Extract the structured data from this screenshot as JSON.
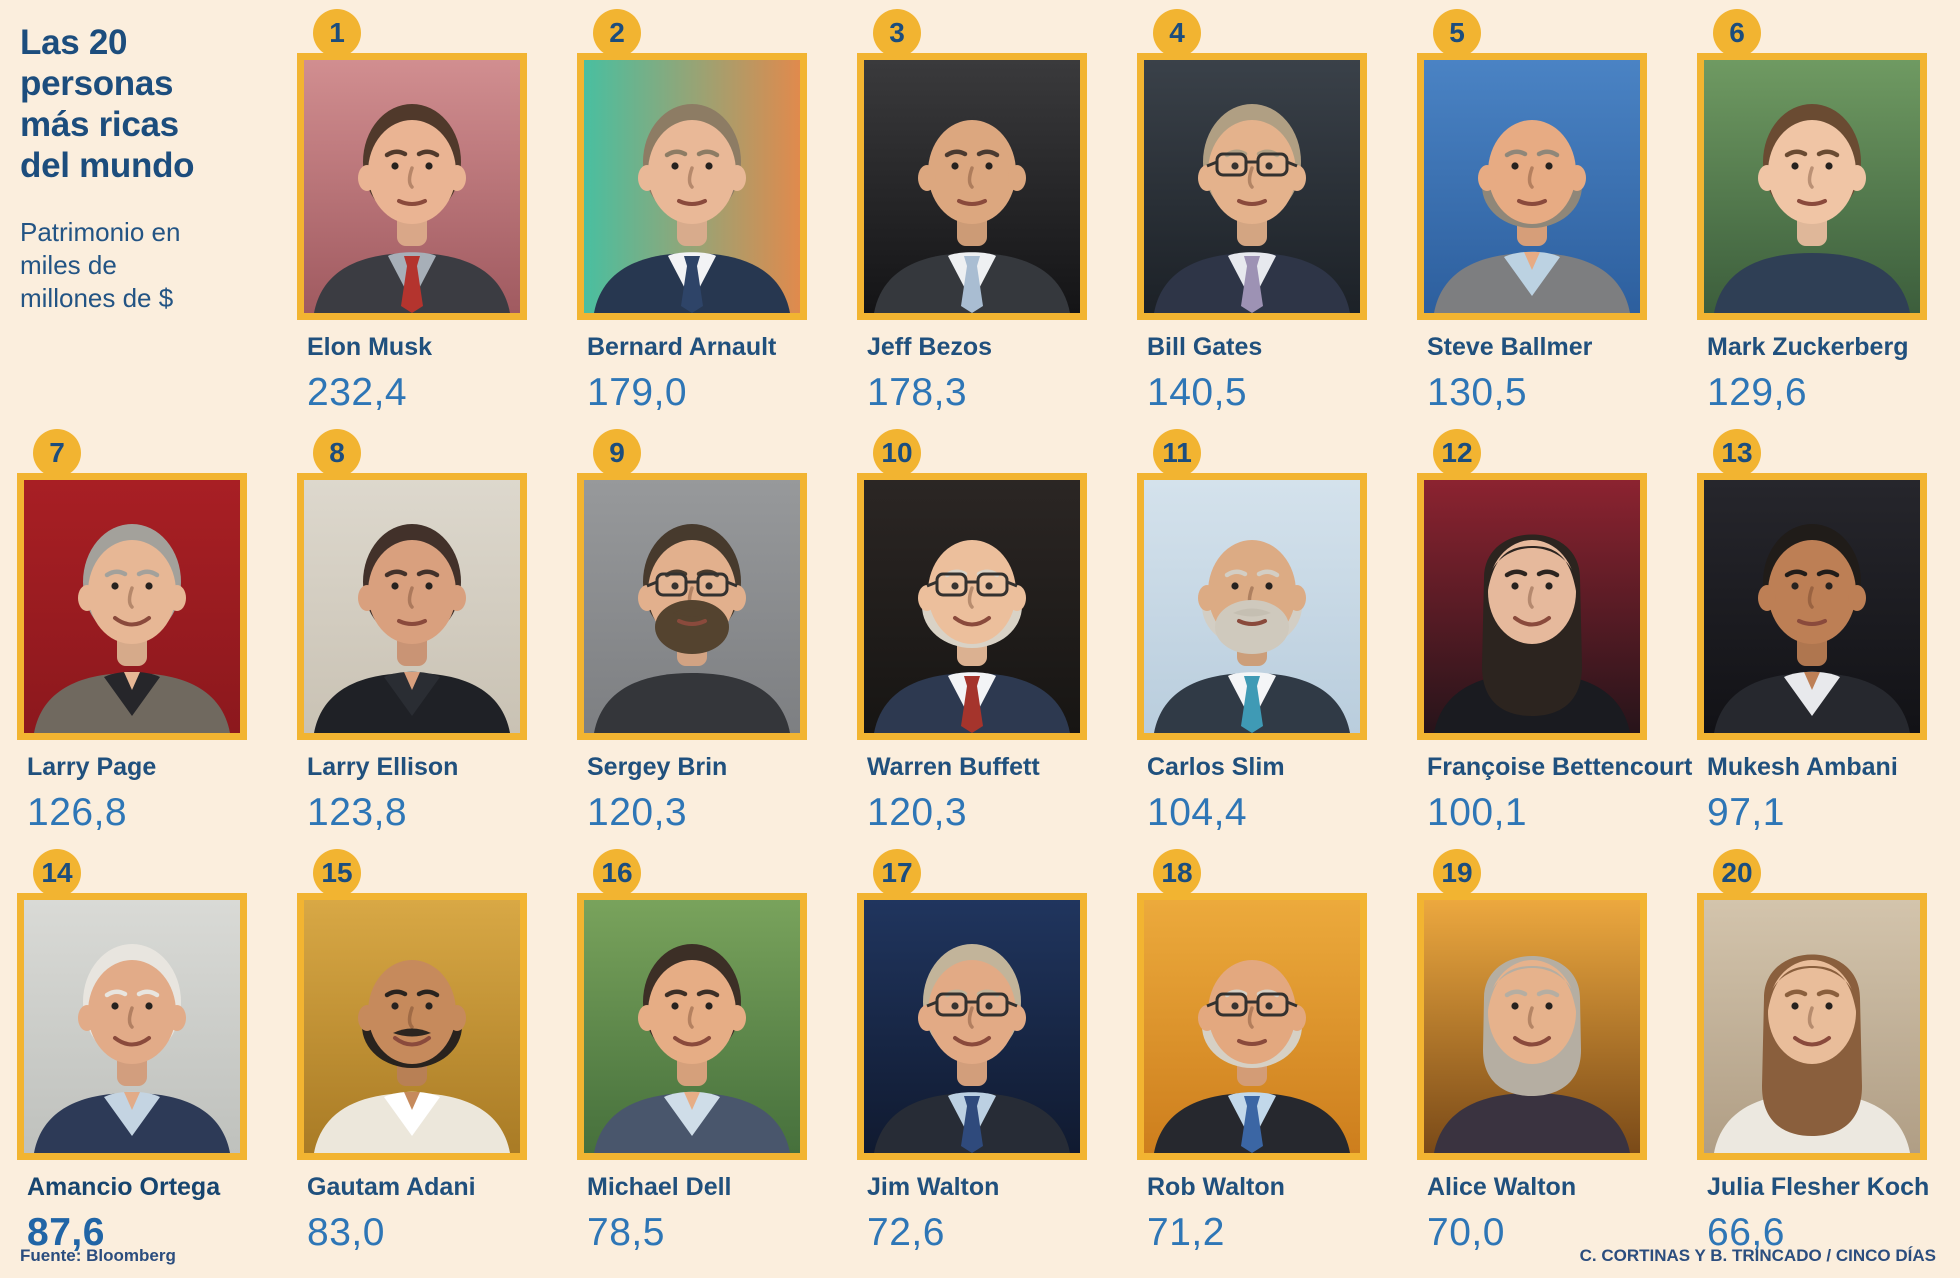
{
  "header": {
    "title": "Las 20 personas más ricas del mundo",
    "subtitle": "Patrimonio en miles de millones de $"
  },
  "footer": {
    "source": "Fuente: Bloomberg",
    "credit": "C. CORTINAS Y B. TRINCADO / CINCO DÍAS"
  },
  "colors": {
    "background": "#fbeedd",
    "accent_gold": "#f2b431",
    "navy": "#1c4d7d",
    "value_blue": "#2e76b6"
  },
  "people": [
    {
      "rank": 1,
      "row": 1,
      "name": "Elon Musk",
      "value_display": "232,4",
      "highlighted": false,
      "avatar": {
        "bg": [
          "#d18e90",
          "#a05a60"
        ],
        "bgDir": "v",
        "skin": "#eab493",
        "hair": "#50392b",
        "hairStyle": "short",
        "beard": null,
        "mustache": null,
        "glasses": false,
        "jacket": "#3b3c42",
        "shirt": "#a7afb8",
        "tie": "#b4342e",
        "neck": "suit",
        "mouth": "neutral"
      }
    },
    {
      "rank": 2,
      "row": 1,
      "name": "Bernard Arnault",
      "value_display": "179,0",
      "highlighted": false,
      "avatar": {
        "bg": [
          "#49bfa0",
          "#e08a4d"
        ],
        "bgDir": "h",
        "skin": "#e9b897",
        "hair": "#8d7c64",
        "hairStyle": "short",
        "beard": null,
        "mustache": null,
        "glasses": false,
        "jacket": "#273750",
        "shirt": "#f2f3f5",
        "tie": "#2e4468",
        "neck": "suit",
        "mouth": "neutral"
      }
    },
    {
      "rank": 3,
      "row": 1,
      "name": "Jeff Bezos",
      "value_display": "178,3",
      "highlighted": false,
      "avatar": {
        "bg": [
          "#3a3a3c",
          "#141416"
        ],
        "bgDir": "v",
        "skin": "#dca77f",
        "hair": "#5a4634",
        "hairStyle": "bald",
        "beard": null,
        "mustache": null,
        "glasses": false,
        "jacket": "#35383d",
        "shirt": "#eef0f2",
        "tie": "#a9bdd2",
        "neck": "suit",
        "mouth": "neutral"
      }
    },
    {
      "rank": 4,
      "row": 1,
      "name": "Bill Gates",
      "value_display": "140,5",
      "highlighted": false,
      "avatar": {
        "bg": [
          "#3a4149",
          "#1c2127"
        ],
        "bgDir": "v",
        "skin": "#e4b28c",
        "hair": "#b09f83",
        "hairStyle": "short",
        "beard": null,
        "mustache": null,
        "glasses": true,
        "jacket": "#2e3547",
        "shirt": "#e7e9ee",
        "tie": "#9d92b4",
        "neck": "suit",
        "mouth": "neutral"
      }
    },
    {
      "rank": 5,
      "row": 1,
      "name": "Steve Ballmer",
      "value_display": "130,5",
      "highlighted": false,
      "avatar": {
        "bg": [
          "#4a83c4",
          "#2d5f9e"
        ],
        "bgDir": "v",
        "skin": "#e7ab83",
        "hair": "#8f8779",
        "hairStyle": "side",
        "beard": null,
        "mustache": null,
        "glasses": false,
        "jacket": "#7d7e80",
        "shirt": "#bcd2e2",
        "tie": null,
        "neck": "open",
        "mouth": "neutral"
      }
    },
    {
      "rank": 6,
      "row": 1,
      "name": "Mark Zuckerberg",
      "value_display": "129,6",
      "highlighted": false,
      "avatar": {
        "bg": [
          "#6f9a62",
          "#3c5e3c"
        ],
        "bgDir": "v",
        "skin": "#f0c5a5",
        "hair": "#6a4b32",
        "hairStyle": "short",
        "beard": null,
        "mustache": null,
        "glasses": false,
        "jacket": "#2f3f55",
        "shirt": "#2f3f55",
        "tie": null,
        "neck": "crew",
        "mouth": "neutral"
      }
    },
    {
      "rank": 7,
      "row": 2,
      "name": "Larry Page",
      "value_display": "126,8",
      "highlighted": false,
      "avatar": {
        "bg": [
          "#a81f24",
          "#8c181d"
        ],
        "bgDir": "v",
        "skin": "#e7b795",
        "hair": "#a3a19b",
        "hairStyle": "short",
        "beard": null,
        "mustache": null,
        "glasses": false,
        "jacket": "#70695f",
        "shirt": "#26262a",
        "tie": null,
        "neck": "open",
        "mouth": "smile"
      }
    },
    {
      "rank": 8,
      "row": 2,
      "name": "Larry Ellison",
      "value_display": "123,8",
      "highlighted": false,
      "avatar": {
        "bg": [
          "#ddd8cd",
          "#c9c2b4"
        ],
        "bgDir": "v",
        "skin": "#d9a07e",
        "hair": "#42312a",
        "hairStyle": "short",
        "beard": null,
        "mustache": null,
        "glasses": false,
        "jacket": "#1f2126",
        "shirt": "#2a2d33",
        "tie": null,
        "neck": "open",
        "mouth": "neutral"
      }
    },
    {
      "rank": 9,
      "row": 2,
      "name": "Sergey Brin",
      "value_display": "120,3",
      "highlighted": false,
      "avatar": {
        "bg": [
          "#97999b",
          "#7d7f82"
        ],
        "bgDir": "v",
        "skin": "#e2b08d",
        "hair": "#473a2d",
        "hairStyle": "short",
        "beard": "#54432f",
        "mustache": "#54432f",
        "glasses": true,
        "jacket": "#34363a",
        "shirt": "#34363a",
        "tie": null,
        "neck": "crew",
        "mouth": "neutral"
      }
    },
    {
      "rank": 10,
      "row": 2,
      "name": "Warren Buffett",
      "value_display": "120,3",
      "highlighted": false,
      "avatar": {
        "bg": [
          "#2b2624",
          "#171513"
        ],
        "bgDir": "v",
        "skin": "#ecbf9c",
        "hair": "#d9d2c6",
        "hairStyle": "side",
        "beard": null,
        "mustache": null,
        "glasses": true,
        "jacket": "#2d3950",
        "shirt": "#f3f4f6",
        "tie": "#a5342c",
        "neck": "suit",
        "mouth": "smile"
      }
    },
    {
      "rank": 11,
      "row": 2,
      "name": "Carlos Slim",
      "value_display": "104,4",
      "highlighted": false,
      "avatar": {
        "bg": [
          "#d4e2ec",
          "#b9cddd"
        ],
        "bgDir": "v",
        "skin": "#dcab84",
        "hair": "#d3cec4",
        "hairStyle": "side",
        "beard": "#cfc9bd",
        "mustache": "#c5bfb2",
        "glasses": false,
        "jacket": "#303a46",
        "shirt": "#f4f5f7",
        "tie": "#3f9ab5",
        "neck": "suit",
        "mouth": "neutral"
      }
    },
    {
      "rank": 12,
      "row": 2,
      "name": "Françoise Bettencourt",
      "value_display": "100,1",
      "highlighted": false,
      "avatar": {
        "bg": [
          "#8c2330",
          "#27141a"
        ],
        "bgDir": "v",
        "skin": "#e6b99c",
        "hair": "#2c241f",
        "hairStyle": "long",
        "beard": null,
        "mustache": null,
        "glasses": false,
        "jacket": "#1a1b20",
        "shirt": "#1a1b20",
        "tie": null,
        "neck": "crew",
        "mouth": "smile"
      }
    },
    {
      "rank": 13,
      "row": 2,
      "name": "Mukesh Ambani",
      "value_display": "97,1",
      "highlighted": false,
      "avatar": {
        "bg": [
          "#26262c",
          "#121216"
        ],
        "bgDir": "v",
        "skin": "#bd7f55",
        "hair": "#201c19",
        "hairStyle": "short",
        "beard": null,
        "mustache": null,
        "glasses": false,
        "jacket": "#26282e",
        "shirt": "#e8e9ec",
        "tie": null,
        "neck": "open",
        "mouth": "neutral"
      }
    },
    {
      "rank": 14,
      "row": 3,
      "name": "Amancio Ortega",
      "value_display": "87,6",
      "highlighted": true,
      "avatar": {
        "bg": [
          "#d9dad6",
          "#bfc1bd"
        ],
        "bgDir": "v",
        "skin": "#e2ab88",
        "hair": "#e8e5df",
        "hairStyle": "short",
        "beard": null,
        "mustache": null,
        "glasses": false,
        "jacket": "#2d3a57",
        "shirt": "#c4d4e2",
        "tie": null,
        "neck": "open",
        "mouth": "smile"
      }
    },
    {
      "rank": 15,
      "row": 3,
      "name": "Gautam Adani",
      "value_display": "83,0",
      "highlighted": false,
      "avatar": {
        "bg": [
          "#d8a845",
          "#a97b25"
        ],
        "bgDir": "v",
        "skin": "#c68a5c",
        "hair": "#29231e",
        "hairStyle": "side",
        "beard": null,
        "mustache": "#2b2520",
        "glasses": false,
        "jacket": "#ece7db",
        "shirt": "#ffffff",
        "tie": null,
        "neck": "open",
        "mouth": "smile"
      }
    },
    {
      "rank": 16,
      "row": 3,
      "name": "Michael Dell",
      "value_display": "78,5",
      "highlighted": false,
      "avatar": {
        "bg": [
          "#79a35c",
          "#46703c"
        ],
        "bgDir": "v",
        "skin": "#e6ad85",
        "hair": "#3c2f26",
        "hairStyle": "short",
        "beard": null,
        "mustache": null,
        "glasses": false,
        "jacket": "#49566c",
        "shirt": "#cfdde8",
        "tie": null,
        "neck": "open",
        "mouth": "smile"
      }
    },
    {
      "rank": 17,
      "row": 3,
      "name": "Jim Walton",
      "value_display": "72,6",
      "highlighted": false,
      "avatar": {
        "bg": [
          "#20355e",
          "#101a30"
        ],
        "bgDir": "v",
        "skin": "#e2aa85",
        "hair": "#c2b49a",
        "hairStyle": "short",
        "beard": null,
        "mustache": null,
        "glasses": true,
        "jacket": "#272c36",
        "shirt": "#bcd0e2",
        "tie": "#2f4a7c",
        "neck": "suit",
        "mouth": "smile"
      }
    },
    {
      "rank": 18,
      "row": 3,
      "name": "Rob Walton",
      "value_display": "71,2",
      "highlighted": false,
      "avatar": {
        "bg": [
          "#ecaa3c",
          "#cd7e1d"
        ],
        "bgDir": "v",
        "skin": "#e3a87f",
        "hair": "#d6d0c4",
        "hairStyle": "side",
        "beard": null,
        "mustache": null,
        "glasses": true,
        "jacket": "#26282e",
        "shirt": "#c2d8ea",
        "tie": "#3b66a4",
        "neck": "suit",
        "mouth": "neutral"
      }
    },
    {
      "rank": 19,
      "row": 3,
      "name": "Alice Walton",
      "value_display": "70,0",
      "highlighted": false,
      "avatar": {
        "bg": [
          "#eca83f",
          "#7a4a18"
        ],
        "bgDir": "v",
        "skin": "#e6b28c",
        "hair": "#b5aea2",
        "hairStyle": "bob",
        "beard": null,
        "mustache": null,
        "glasses": false,
        "jacket": "#3a3340",
        "shirt": "#3a3340",
        "tie": null,
        "neck": "crew",
        "mouth": "smile"
      }
    },
    {
      "rank": 20,
      "row": 3,
      "name": "Julia Flesher Koch",
      "value_display": "66,6",
      "highlighted": false,
      "avatar": {
        "bg": [
          "#d3c4ac",
          "#b09e85"
        ],
        "bgDir": "v",
        "skin": "#e9bd9a",
        "hair": "#8a5f3d",
        "hairStyle": "long",
        "beard": null,
        "mustache": null,
        "glasses": false,
        "jacket": "#ece8e0",
        "shirt": "#ece8e0",
        "tie": null,
        "neck": "crew",
        "mouth": "smile"
      }
    }
  ],
  "chart_data": {
    "type": "table",
    "title": "Las 20 personas más ricas del mundo",
    "unit": "miles de millones de $",
    "categories": [
      "Elon Musk",
      "Bernard Arnault",
      "Jeff Bezos",
      "Bill Gates",
      "Steve Ballmer",
      "Mark Zuckerberg",
      "Larry Page",
      "Larry Ellison",
      "Sergey Brin",
      "Warren Buffett",
      "Carlos Slim",
      "Françoise Bettencourt",
      "Mukesh Ambani",
      "Amancio Ortega",
      "Gautam Adani",
      "Michael Dell",
      "Jim Walton",
      "Rob Walton",
      "Alice Walton",
      "Julia Flesher Koch"
    ],
    "values": [
      232.4,
      179.0,
      178.3,
      140.5,
      130.5,
      129.6,
      126.8,
      123.8,
      120.3,
      120.3,
      104.4,
      100.1,
      97.1,
      87.6,
      83.0,
      78.5,
      72.6,
      71.2,
      70.0,
      66.6
    ],
    "source": "Bloomberg"
  }
}
